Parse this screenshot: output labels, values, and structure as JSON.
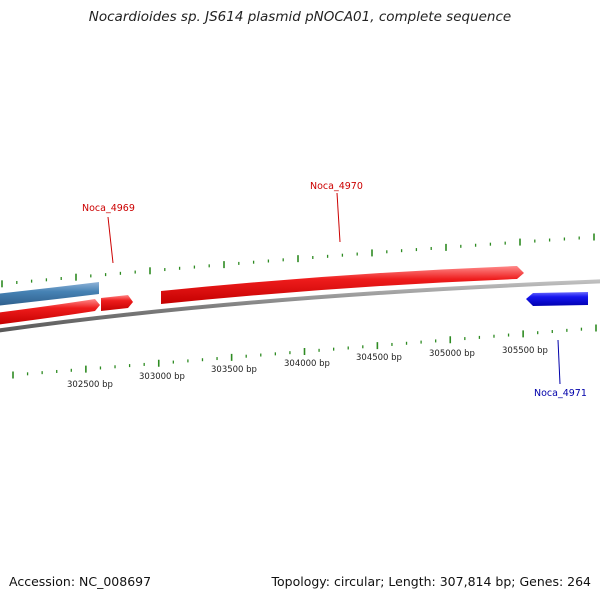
{
  "title": "Nocardioides sp. JS614 plasmid pNOCA01, complete sequence",
  "footer": {
    "accession": "Accession: NC_008697",
    "summary": "Topology: circular; Length: 307,814 bp; Genes: 264"
  },
  "scale_labels": [
    "302500 bp",
    "303000 bp",
    "303500 bp",
    "304000 bp",
    "304500 bp",
    "305000 bp",
    "305500 bp"
  ],
  "gene_labels": {
    "noca_4969": "Noca_4969",
    "noca_4970": "Noca_4970",
    "noca_4971": "Noca_4971"
  },
  "colors": {
    "forward_gene": "#e41a1c",
    "reverse_gene": "#1010ee",
    "other_gene": "#4682b4",
    "backbone": "#808080",
    "tick": "#2e8b22",
    "forward_label": "#cc0000",
    "reverse_label": "#0000aa"
  }
}
